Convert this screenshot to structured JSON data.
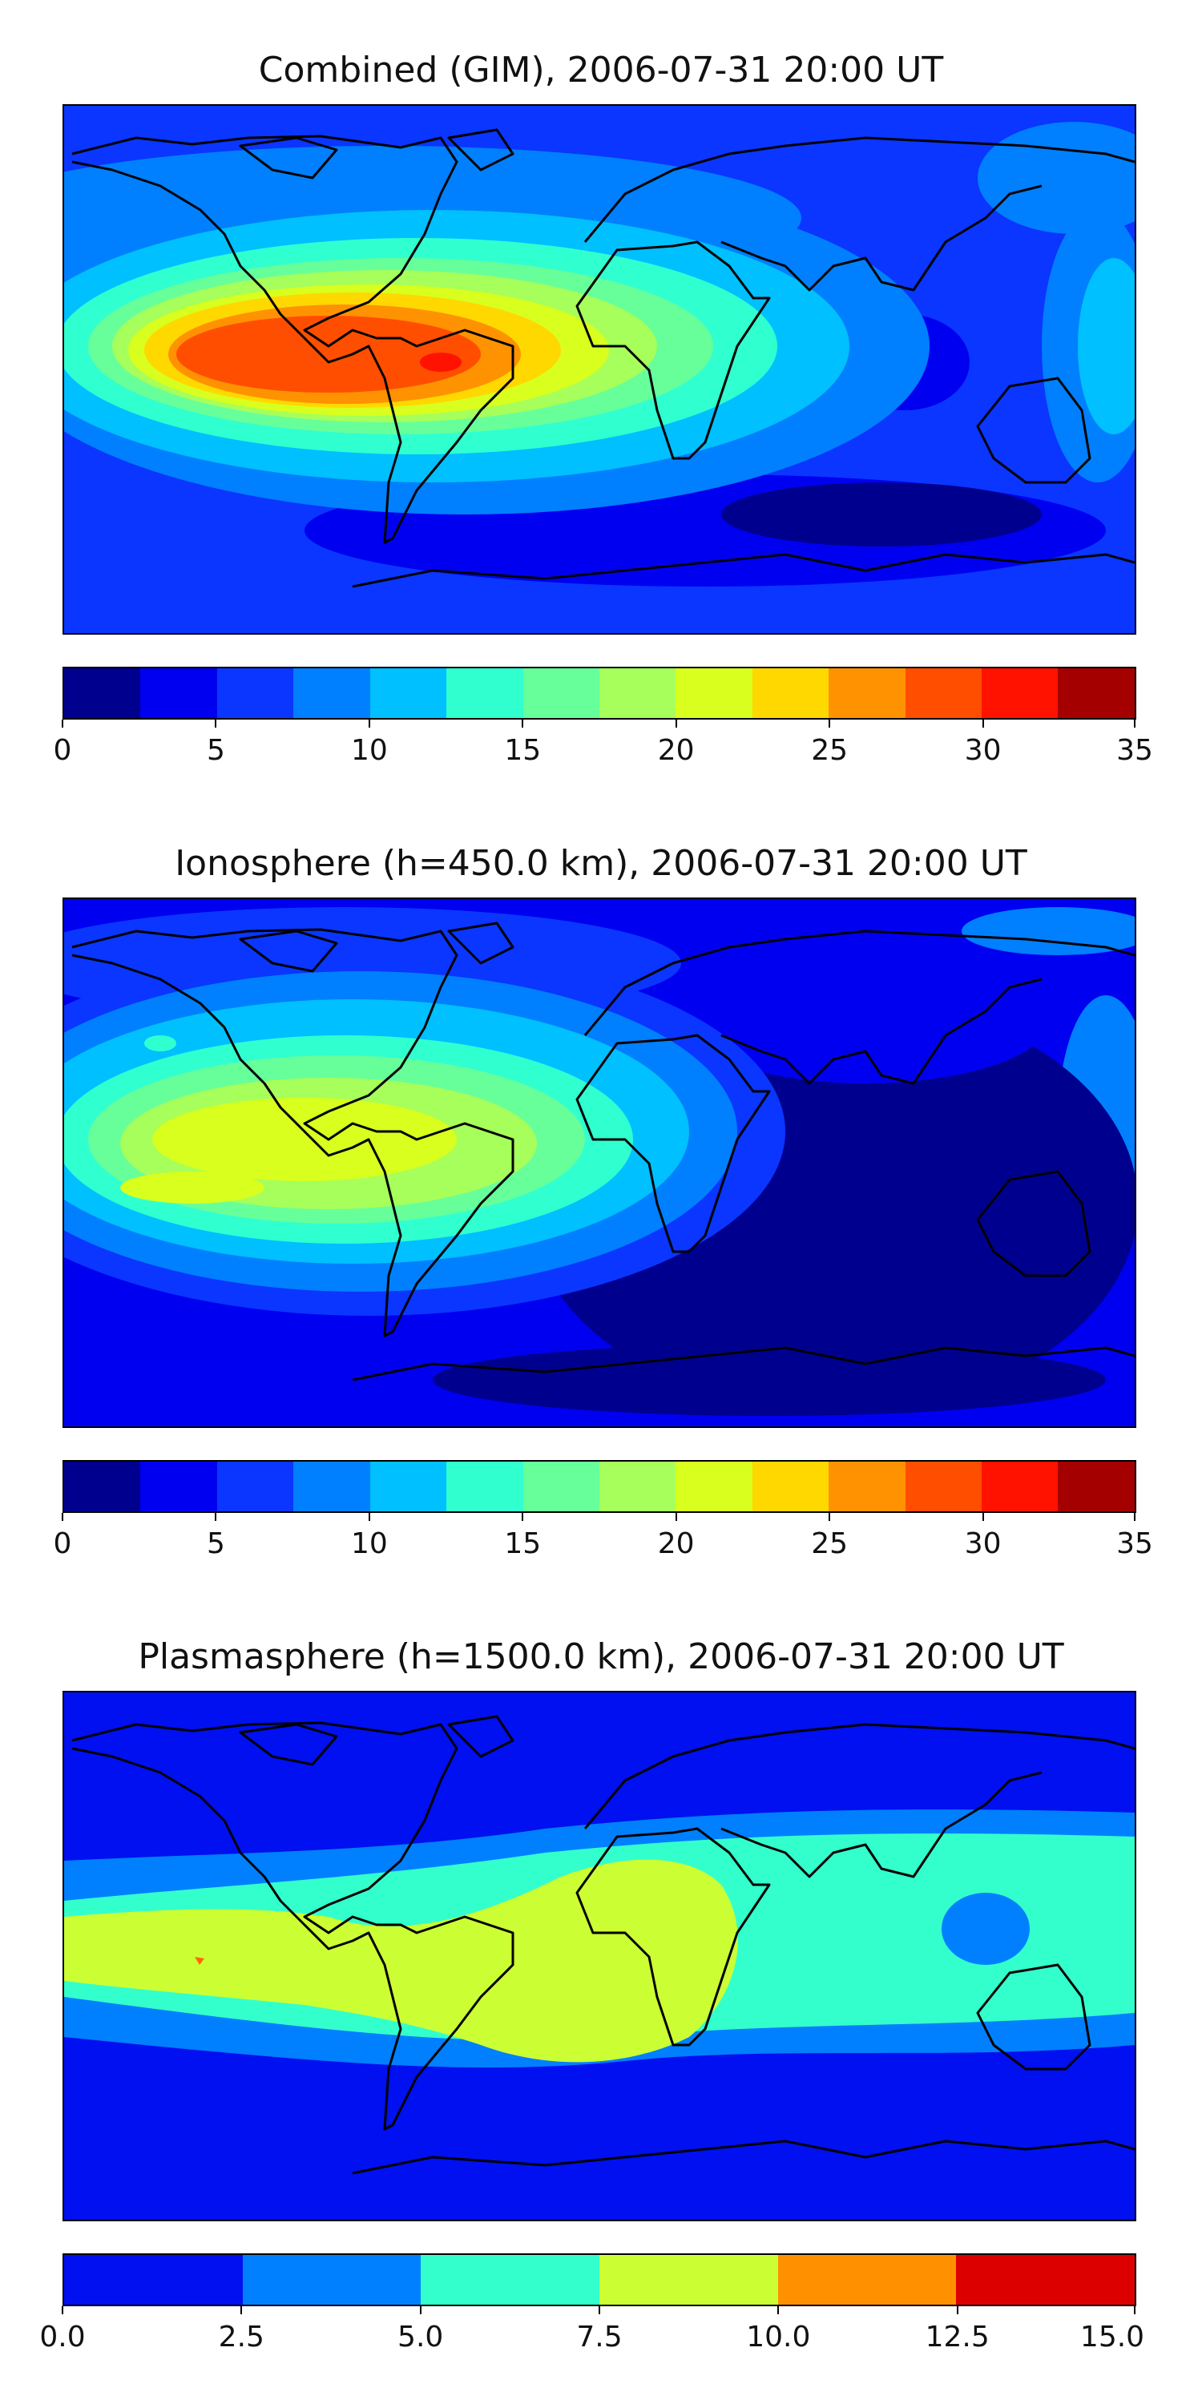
{
  "panels": [
    {
      "id": "combined",
      "title": "Combined (GIM), 2006-07-31 20:00 UT",
      "colorbar": {
        "ticks": [
          "0",
          "5",
          "10",
          "15",
          "20",
          "25",
          "30",
          "35"
        ],
        "range": [
          0,
          35
        ],
        "colors": [
          "#00008f",
          "#0000f0",
          "#0a36ff",
          "#0080ff",
          "#00c0ff",
          "#30ffd0",
          "#66ff9a",
          "#a6ff5a",
          "#d8ff1e",
          "#ffd800",
          "#ff9200",
          "#ff4e00",
          "#ff1200",
          "#a50000"
        ]
      }
    },
    {
      "id": "ionosphere",
      "title": "Ionosphere  (h=450.0 km), 2006-07-31 20:00 UT",
      "colorbar": {
        "ticks": [
          "0",
          "5",
          "10",
          "15",
          "20",
          "25",
          "30",
          "35"
        ],
        "range": [
          0,
          35
        ],
        "colors": [
          "#00008f",
          "#0000f0",
          "#0a36ff",
          "#0080ff",
          "#00c0ff",
          "#30ffd0",
          "#66ff9a",
          "#a6ff5a",
          "#d8ff1e",
          "#ffd800",
          "#ff9200",
          "#ff4e00",
          "#ff1200",
          "#a50000"
        ]
      }
    },
    {
      "id": "plasmasphere",
      "title": "Plasmasphere (h=1500.0 km), 2006-07-31 20:00 UT",
      "colorbar": {
        "ticks": [
          "0.0",
          "2.5",
          "5.0",
          "7.5",
          "10.0",
          "12.5",
          "15.0"
        ],
        "range": [
          0,
          15
        ],
        "colors": [
          "#0010f0",
          "#0080ff",
          "#33ffcc",
          "#ccff33",
          "#ff9000",
          "#dd0000"
        ]
      }
    }
  ]
}
